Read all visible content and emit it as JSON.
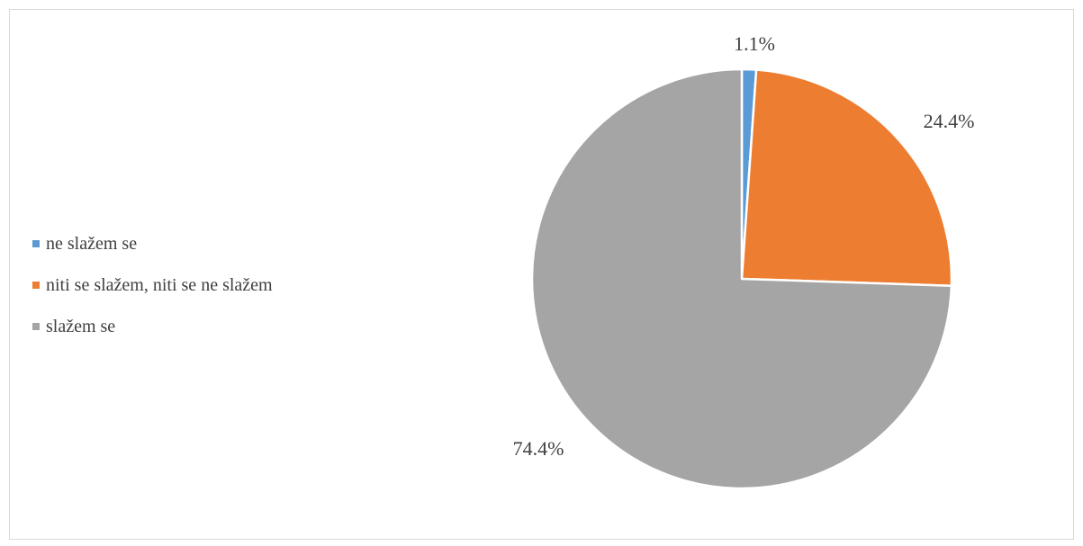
{
  "chart_data": {
    "type": "pie",
    "title": "",
    "legend_position": "left",
    "slices": [
      {
        "label": "ne slažem se",
        "value": 1.1,
        "value_label": "1.1%",
        "color": "#5b9bd5"
      },
      {
        "label": "niti se slažem, niti se ne slažem",
        "value": 24.4,
        "value_label": "24.4%",
        "color": "#ed7d31"
      },
      {
        "label": "slažem se",
        "value": 74.4,
        "value_label": "74.4%",
        "color": "#a5a5a5"
      }
    ]
  }
}
